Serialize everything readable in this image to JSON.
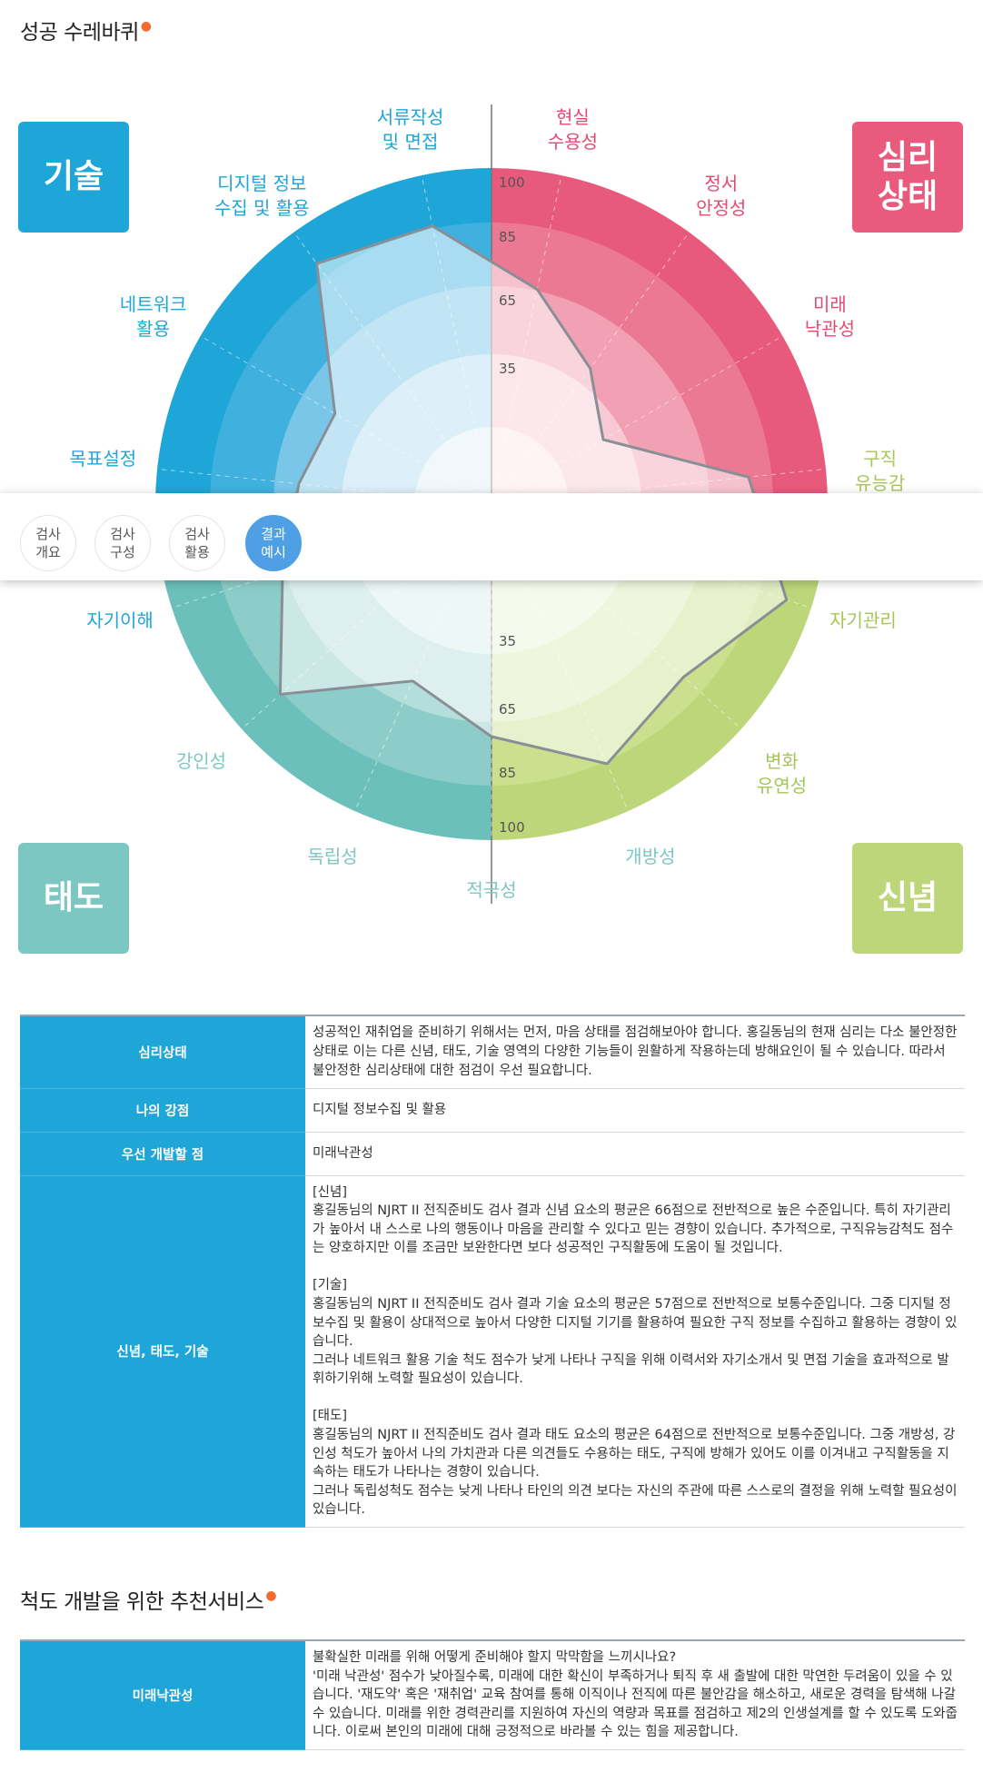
{
  "section1": {
    "title": "성공 수레바퀴"
  },
  "corners": {
    "skill": "기술",
    "psy": "심리\n상태",
    "attitude": "태도",
    "belief": "신념"
  },
  "scales": [
    {
      "label": "서류작성\n및 면접",
      "score": 80,
      "color": "#1ea6d8"
    },
    {
      "label": "디지털 정보\n수집 및 활용",
      "score": 85,
      "color": "#1ea6d8"
    },
    {
      "label": "네트워크\n활용",
      "score": 40,
      "color": "#1ea6d8"
    },
    {
      "label": "목표설정",
      "score": 45,
      "color": "#1ea6d8"
    },
    {
      "label": "자기이해",
      "score": 55,
      "color": "#1ea6d8"
    },
    {
      "label": "강인성",
      "score": 80,
      "color": "#7dc7c2"
    },
    {
      "label": "독립성",
      "score": 45,
      "color": "#7dc7c2"
    },
    {
      "label": "적극성",
      "score": 60,
      "color": "#7dc7c2"
    },
    {
      "label": "개방성",
      "score": 80,
      "color": "#7dc7c2"
    },
    {
      "label": "변화\n유연성",
      "score": 70,
      "color": "#a7c55a"
    },
    {
      "label": "자기관리",
      "score": 90,
      "color": "#a7c55a"
    },
    {
      "label": "구직\n유능감",
      "score": 70,
      "color": "#a7c55a"
    },
    {
      "label": "미래\n낙관성",
      "score": 20,
      "color": "#e54a73"
    },
    {
      "label": "정서\n안정성",
      "score": 35,
      "color": "#e54a73"
    },
    {
      "label": "현실\n수용성",
      "score": 55,
      "color": "#e54a73"
    }
  ],
  "axis_ticks": [
    "100",
    "85",
    "65",
    "35"
  ],
  "nav": [
    {
      "label": "검사\n개요",
      "active": false
    },
    {
      "label": "검사\n구성",
      "active": false
    },
    {
      "label": "검사\n활용",
      "active": false
    },
    {
      "label": "결과\n예시",
      "active": true
    }
  ],
  "results": [
    {
      "header": "심리상태",
      "text": "성공적인 재취업을 준비하기 위해서는 먼저, 마음 상태를 점검해보아야 합니다. 홍길동님의 현재 심리는 다소 불안정한 상태로 이는 다른 신념, 태도, 기술 영역의 다양한 기능들이 원활하게 작용하는데 방해요인이 될 수 있습니다. 따라서 불안정한 심리상태에 대한 점검이 우선 필요합니다."
    },
    {
      "header": "나의 강점",
      "text": "디지털 정보수집 및 활용"
    },
    {
      "header": "우선 개발할 점",
      "text": "미래낙관성"
    },
    {
      "header": "신념, 태도, 기술",
      "text": "[신념]\n홍길동님의 NJRT II 전직준비도 검사 결과 신념 요소의 평균은 66점으로 전반적으로 높은 수준입니다. 특히 자기관리가 높아서 내 스스로 나의 행동이나 마음을 관리할 수 있다고 믿는 경향이 있습니다. 추가적으로, 구직유능감척도 점수는 양호하지만 이를 조금만 보완한다면 보다 성공적인 구직활동에 도움이 될 것입니다.\n\n[기술]\n홍길동님의 NJRT II 전직준비도 검사 결과 기술 요소의 평균은 57점으로 전반적으로 보통수준입니다. 그중 디지털 정보수집 및 활용이 상대적으로 높아서 다양한 디지털 기기를 활용하여 필요한 구직 정보를 수집하고 활용하는 경향이 있습니다.\n그러나 네트워크 활용 기술 척도 점수가 낮게 나타나 구직을 위해 이력서와 자기소개서 및 면접 기술을 효과적으로 발휘하기위해 노력할 필요성이 있습니다.\n\n[태도]\n홍길동님의 NJRT II 전직준비도 검사 결과 태도 요소의 평균은 64점으로 전반적으로 보통수준입니다. 그중 개방성, 강인성 척도가 높아서 나의 가치관과 다른 의견들도 수용하는 태도, 구직에 방해가 있어도 이를 이겨내고 구직활동을 지속하는 태도가 나타나는 경향이 있습니다.\n그러나 독립성척도 점수는 낮게 나타나 타인의 의견 보다는 자신의 주관에 따른 스스로의 결정을 위해 노력할 필요성이 있습니다."
    }
  ],
  "section2": {
    "title": "척도 개발을 위한 추천서비스"
  },
  "recommend": [
    {
      "header": "미래낙관성",
      "text": "불확실한 미래를 위해 어떻게 준비해야 할지 막막함을 느끼시나요?\n'미래 낙관성' 점수가 낮아질수록, 미래에 대한 확신이 부족하거나 퇴직 후 새 출발에 대한 막연한 두려움이 있을 수 있습니다. '재도약' 혹은 '재취업' 교육 참여를 통해 이직이나 전직에 따른 불안감을 해소하고, 새로운 경력을 탐색해 나갈 수 있습니다. 미래를 위한 경력관리를 지원하여 자신의 역량과 목표를 점검하고 제2의 인생설계를 할 수 있도록 도와줍니다. 이로써 본인의 미래에 대해 긍정적으로 바라볼 수 있는 힘을 제공합니다."
    }
  ]
}
